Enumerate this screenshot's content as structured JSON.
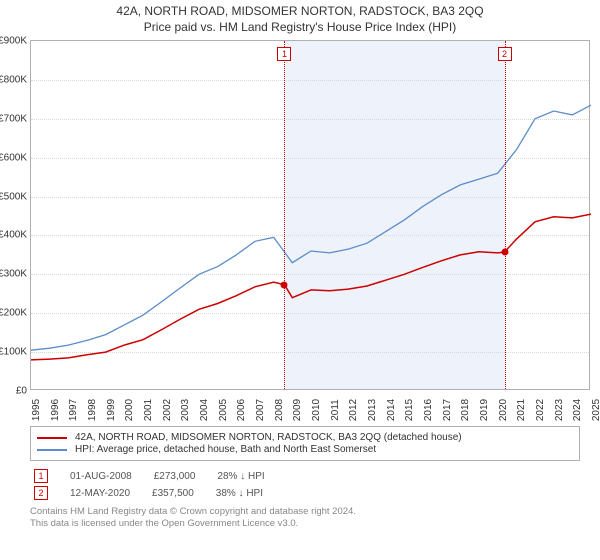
{
  "title": "42A, NORTH ROAD, MIDSOMER NORTON, RADSTOCK, BA3 2QQ",
  "subtitle": "Price paid vs. HM Land Registry's House Price Index (HPI)",
  "chart": {
    "type": "line",
    "background_color": "#ffffff",
    "grid_color": "#d9d9d9",
    "border_color": "#b0b0b0",
    "ylim": [
      0,
      900000
    ],
    "ytick_step": 100000,
    "y_prefix": "£",
    "y_suffix": "K",
    "x_years": [
      1995,
      1996,
      1997,
      1998,
      1999,
      2000,
      2001,
      2002,
      2003,
      2004,
      2005,
      2006,
      2007,
      2008,
      2009,
      2010,
      2011,
      2012,
      2013,
      2014,
      2015,
      2016,
      2017,
      2018,
      2019,
      2020,
      2021,
      2022,
      2023,
      2024,
      2025
    ],
    "shade_region": {
      "start_year": 2008.58,
      "end_year": 2020.37,
      "color": "#eef2fa"
    },
    "series": [
      {
        "name": "property",
        "label": "42A, NORTH ROAD, MIDSOMER NORTON, RADSTOCK, BA3 2QQ (detached house)",
        "color": "#cc0000",
        "line_width": 1.5,
        "data": [
          [
            1995,
            80000
          ],
          [
            1996,
            82000
          ],
          [
            1997,
            85000
          ],
          [
            1998,
            93000
          ],
          [
            1999,
            100000
          ],
          [
            2000,
            118000
          ],
          [
            2001,
            132000
          ],
          [
            2002,
            158000
          ],
          [
            2003,
            185000
          ],
          [
            2004,
            210000
          ],
          [
            2005,
            225000
          ],
          [
            2006,
            245000
          ],
          [
            2007,
            268000
          ],
          [
            2008,
            280000
          ],
          [
            2008.58,
            273000
          ],
          [
            2009,
            240000
          ],
          [
            2010,
            260000
          ],
          [
            2011,
            258000
          ],
          [
            2012,
            262000
          ],
          [
            2013,
            270000
          ],
          [
            2014,
            285000
          ],
          [
            2015,
            300000
          ],
          [
            2016,
            318000
          ],
          [
            2017,
            335000
          ],
          [
            2018,
            350000
          ],
          [
            2019,
            358000
          ],
          [
            2020,
            355000
          ],
          [
            2020.37,
            357500
          ],
          [
            2021,
            390000
          ],
          [
            2022,
            435000
          ],
          [
            2023,
            448000
          ],
          [
            2024,
            445000
          ],
          [
            2025,
            455000
          ]
        ]
      },
      {
        "name": "hpi",
        "label": "HPI: Average price, detached house, Bath and North East Somerset",
        "color": "#5b8cc9",
        "line_width": 1.3,
        "data": [
          [
            1995,
            105000
          ],
          [
            1996,
            110000
          ],
          [
            1997,
            118000
          ],
          [
            1998,
            130000
          ],
          [
            1999,
            145000
          ],
          [
            2000,
            170000
          ],
          [
            2001,
            195000
          ],
          [
            2002,
            230000
          ],
          [
            2003,
            265000
          ],
          [
            2004,
            300000
          ],
          [
            2005,
            320000
          ],
          [
            2006,
            350000
          ],
          [
            2007,
            385000
          ],
          [
            2008,
            395000
          ],
          [
            2009,
            330000
          ],
          [
            2010,
            360000
          ],
          [
            2011,
            355000
          ],
          [
            2012,
            365000
          ],
          [
            2013,
            380000
          ],
          [
            2014,
            410000
          ],
          [
            2015,
            440000
          ],
          [
            2016,
            475000
          ],
          [
            2017,
            505000
          ],
          [
            2018,
            530000
          ],
          [
            2019,
            545000
          ],
          [
            2020,
            560000
          ],
          [
            2021,
            620000
          ],
          [
            2022,
            700000
          ],
          [
            2023,
            720000
          ],
          [
            2024,
            710000
          ],
          [
            2025,
            735000
          ]
        ]
      }
    ],
    "event_lines": [
      {
        "n": 1,
        "year": 2008.58,
        "color": "#cc0000"
      },
      {
        "n": 2,
        "year": 2020.37,
        "color": "#cc0000"
      }
    ],
    "event_dots": [
      {
        "year": 2008.58,
        "value": 273000
      },
      {
        "year": 2020.37,
        "value": 357500
      }
    ]
  },
  "legend": [
    {
      "color": "#cc0000",
      "text_path": "chart.series.0.label"
    },
    {
      "color": "#5b8cc9",
      "text_path": "chart.series.1.label"
    }
  ],
  "events": [
    {
      "n": "1",
      "date": "01-AUG-2008",
      "price": "£273,000",
      "delta": "28% ↓ HPI"
    },
    {
      "n": "2",
      "date": "12-MAY-2020",
      "price": "£357,500",
      "delta": "38% ↓ HPI"
    }
  ],
  "footnote_line1": "Contains HM Land Registry data © Crown copyright and database right 2024.",
  "footnote_line2": "This data is licensed under the Open Government Licence v3.0."
}
